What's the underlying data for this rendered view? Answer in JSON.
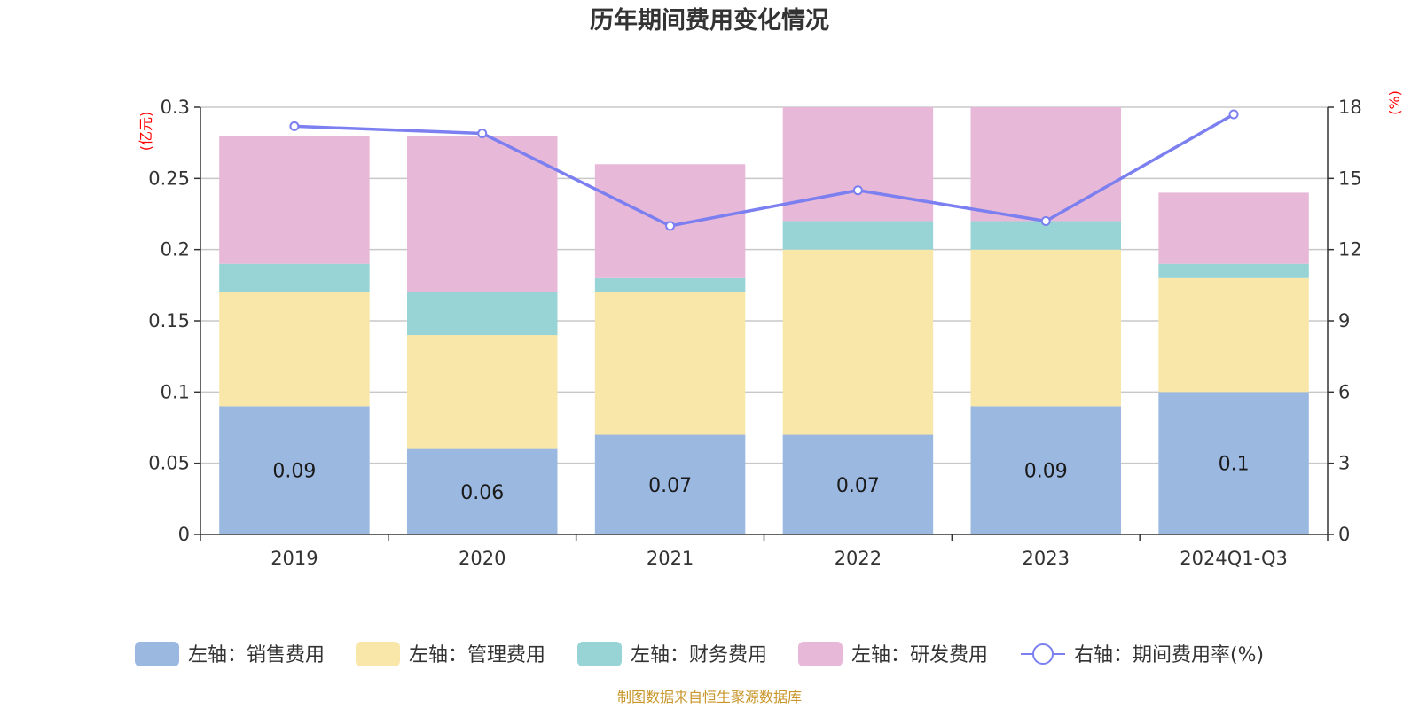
{
  "chart_data": {
    "type": "bar",
    "stacked": true,
    "title": "历年期间费用变化情况",
    "categories": [
      "2019",
      "2020",
      "2021",
      "2022",
      "2023",
      "2024Q1-Q3"
    ],
    "y_left": {
      "unit": "(亿元)",
      "ylim": [
        0,
        0.3
      ],
      "ticks": [
        "0",
        "0.05",
        "0.1",
        "0.15",
        "0.2",
        "0.25",
        "0.3"
      ],
      "tick_values": [
        0,
        0.05,
        0.1,
        0.15,
        0.2,
        0.25,
        0.3
      ]
    },
    "y_right": {
      "unit": "(%)",
      "ylim": [
        0,
        18
      ],
      "ticks": [
        "0",
        "3",
        "6",
        "9",
        "12",
        "15",
        "18"
      ],
      "tick_values": [
        0,
        3,
        6,
        9,
        12,
        15,
        18
      ]
    },
    "series": [
      {
        "name": "左轴：销售费用",
        "kind": "bar",
        "axis": "left",
        "color": "#9bb8e1",
        "values": [
          0.09,
          0.06,
          0.07,
          0.07,
          0.09,
          0.1
        ],
        "labels": [
          "0.09",
          "0.06",
          "0.07",
          "0.07",
          "0.09",
          "0.1"
        ]
      },
      {
        "name": "左轴：管理费用",
        "kind": "bar",
        "axis": "left",
        "color": "#f8e7a8",
        "values": [
          0.08,
          0.08,
          0.1,
          0.13,
          0.11,
          0.08
        ]
      },
      {
        "name": "左轴：财务费用",
        "kind": "bar",
        "axis": "left",
        "color": "#98d4d6",
        "values": [
          0.02,
          0.03,
          0.01,
          0.02,
          0.02,
          0.01
        ]
      },
      {
        "name": "左轴：研发费用",
        "kind": "bar",
        "axis": "left",
        "color": "#e7b8d8",
        "values": [
          0.09,
          0.11,
          0.08,
          0.08,
          0.08,
          0.05
        ]
      },
      {
        "name": "右轴：期间费用率(%)",
        "kind": "line",
        "axis": "right",
        "color": "#7b7ff0",
        "values": [
          17.2,
          16.9,
          13.0,
          14.5,
          13.2,
          17.7
        ]
      }
    ],
    "grid": true,
    "legend_position": "bottom"
  },
  "source_note": "制图数据来自恒生聚源数据库"
}
